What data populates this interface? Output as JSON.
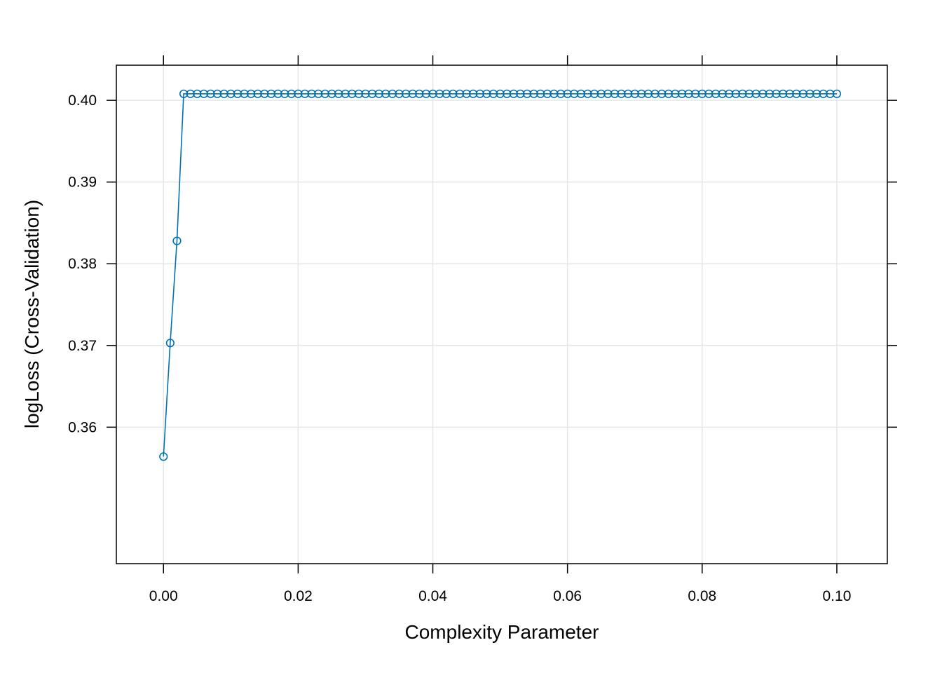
{
  "chart_data": {
    "type": "line",
    "xlabel": "Complexity Parameter",
    "ylabel": "logLoss (Cross-Validation)",
    "xlim": [
      -0.007,
      0.1075
    ],
    "ylim": [
      0.3433,
      0.4043
    ],
    "grid": true,
    "x_ticks": [
      0.0,
      0.02,
      0.04,
      0.06,
      0.08,
      0.1
    ],
    "x_tick_labels": [
      "0.00",
      "0.02",
      "0.04",
      "0.06",
      "0.08",
      "0.10"
    ],
    "y_ticks": [
      0.36,
      0.37,
      0.38,
      0.39,
      0.4
    ],
    "y_tick_labels": [
      "0.36",
      "0.37",
      "0.38",
      "0.39",
      "0.40"
    ],
    "series": [
      {
        "color": "#0072B2",
        "marker": "open-circle",
        "points": [
          {
            "x": 0.0,
            "y": 0.3564
          },
          {
            "x": 0.001,
            "y": 0.3703
          },
          {
            "x": 0.002,
            "y": 0.3828
          },
          {
            "x": 0.003,
            "y": 0.4008
          }
        ],
        "plateau": {
          "x_start": 0.004,
          "x_end": 0.1,
          "step": 0.001,
          "y": 0.4008
        }
      }
    ]
  }
}
